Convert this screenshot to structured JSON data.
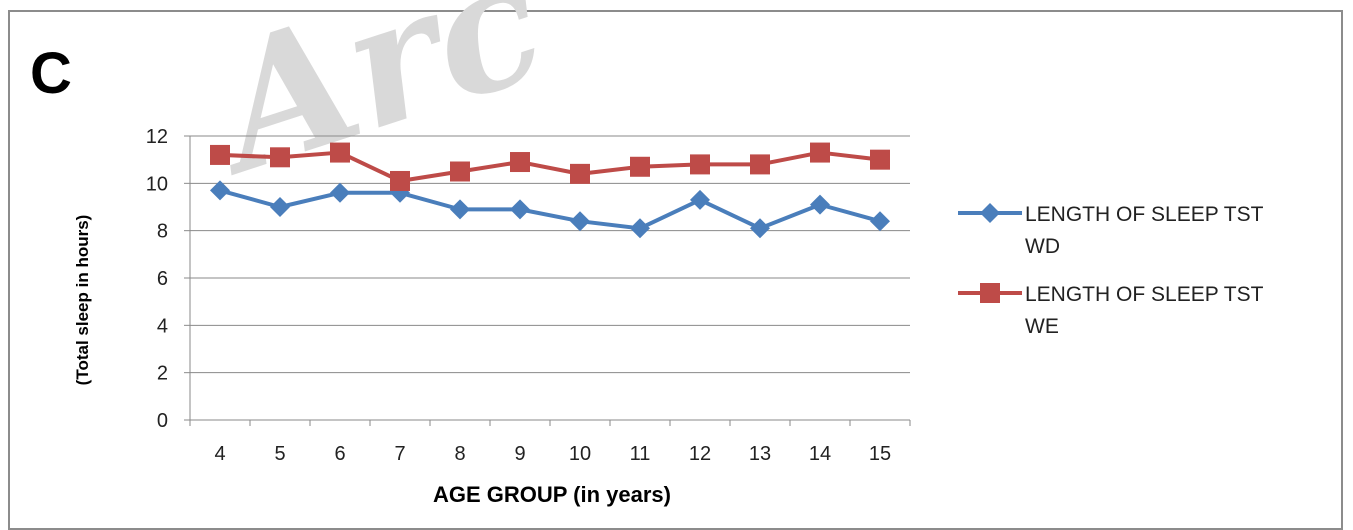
{
  "panel_label": "C",
  "watermark_text": "Arc",
  "chart_data": {
    "type": "line",
    "categories": [
      "4",
      "5",
      "6",
      "7",
      "8",
      "9",
      "10",
      "11",
      "12",
      "13",
      "14",
      "15"
    ],
    "xlabel": "AGE GROUP (in years)",
    "ylabel": "(Total sleep in hours)",
    "ylim": [
      0,
      12
    ],
    "yticks": [
      0,
      2,
      4,
      6,
      8,
      10,
      12
    ],
    "grid": "horizontal",
    "legend_position": "right",
    "series": [
      {
        "name": "LENGTH OF SLEEP TST WD",
        "legend_lines": [
          "LENGTH OF SLEEP TST",
          "WD"
        ],
        "color": "#4a7ebb",
        "marker": "diamond",
        "values": [
          9.7,
          9.0,
          9.6,
          9.6,
          8.9,
          8.9,
          8.4,
          8.1,
          9.3,
          8.1,
          9.1,
          8.4
        ]
      },
      {
        "name": "LENGTH OF SLEEP TST WE",
        "legend_lines": [
          "LENGTH OF SLEEP TST",
          "WE"
        ],
        "color": "#be4b48",
        "marker": "square",
        "values": [
          11.2,
          11.1,
          11.3,
          10.1,
          10.5,
          10.9,
          10.4,
          10.7,
          10.8,
          10.8,
          11.3,
          11.0
        ]
      }
    ]
  }
}
